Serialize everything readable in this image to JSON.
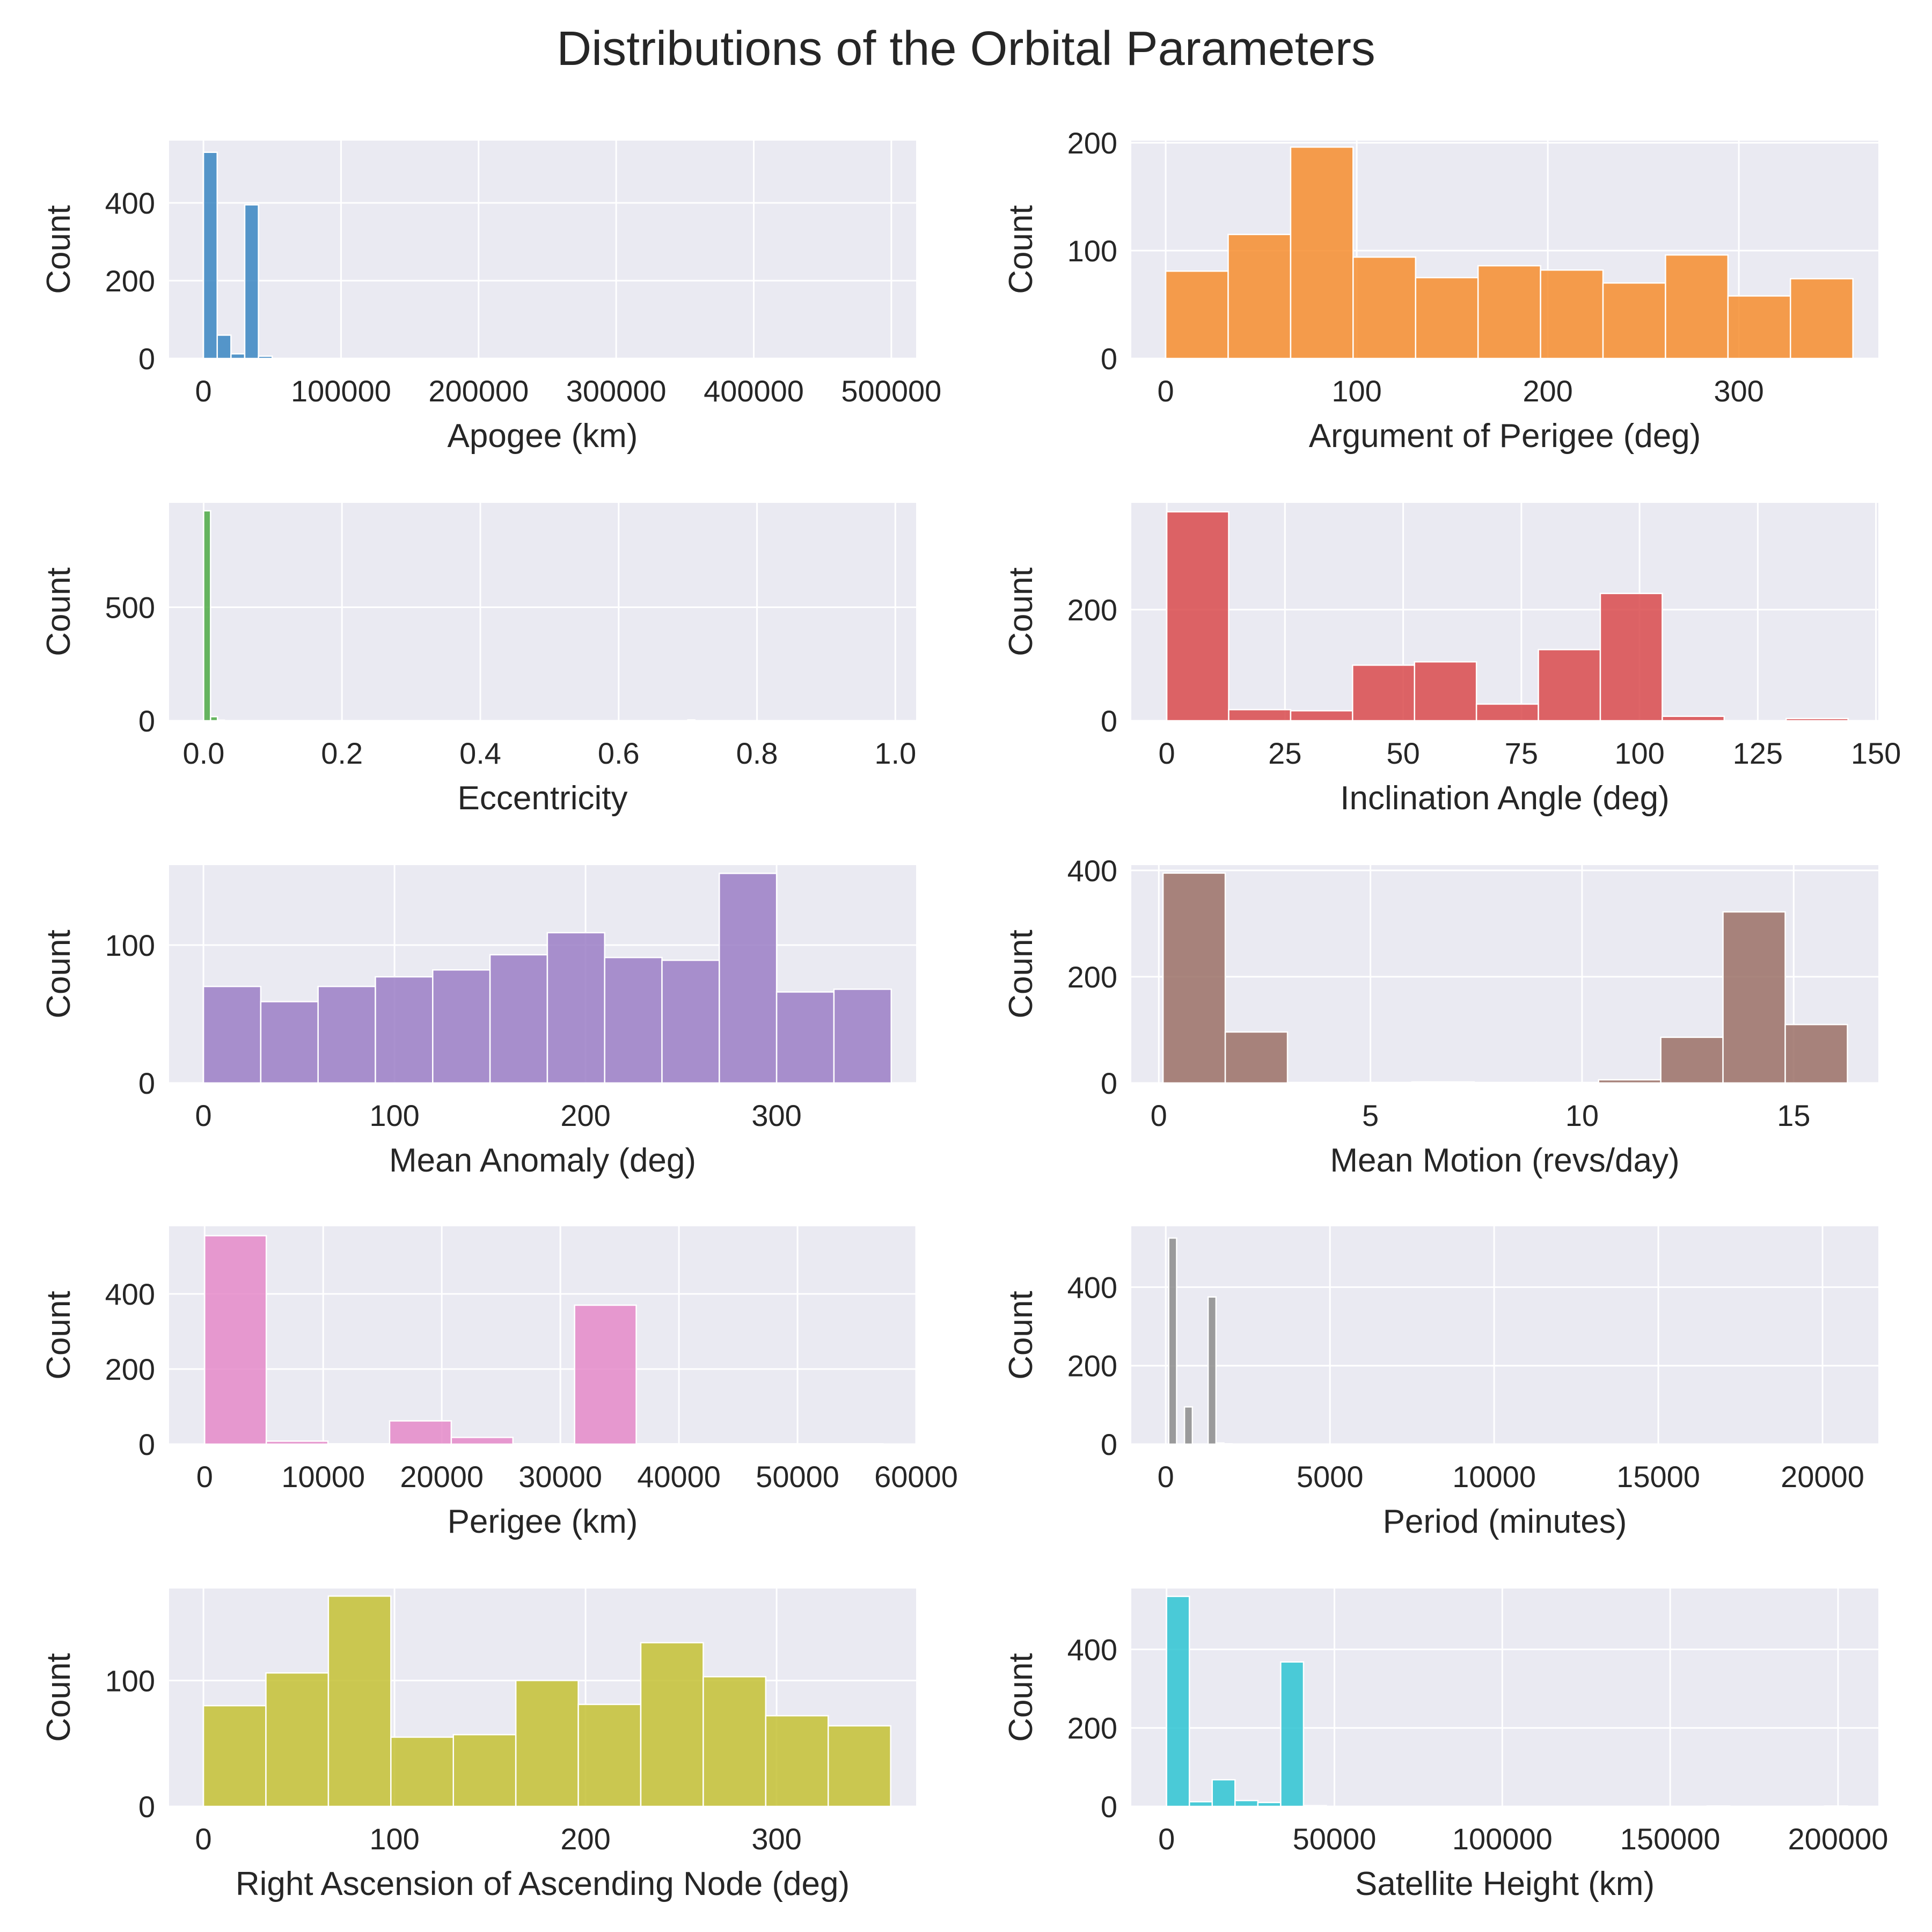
{
  "figure": {
    "title": "Distributions of the Orbital Parameters"
  },
  "chart_data": [
    {
      "type": "bar",
      "xlabel": "Apogee (km)",
      "ylabel": "Count",
      "color": "#3a86c2",
      "xlim": [
        -25000,
        518000
      ],
      "ylim": [
        0,
        560
      ],
      "xticks": [
        0,
        100000,
        200000,
        300000,
        400000,
        500000
      ],
      "xtick_labels": [
        "0",
        "100000",
        "200000",
        "300000",
        "400000",
        "500000"
      ],
      "yticks": [
        0,
        200,
        400
      ],
      "ytick_labels": [
        "0",
        "200",
        "400"
      ],
      "bins": [
        [
          0,
          10000,
          530
        ],
        [
          10000,
          20000,
          60
        ],
        [
          20000,
          30000,
          12
        ],
        [
          30000,
          40000,
          395
        ],
        [
          40000,
          50000,
          6
        ]
      ]
    },
    {
      "type": "bar",
      "xlabel": "Argument of Perigee (deg)",
      "ylabel": "Count",
      "color": "#f68d2e",
      "xlim": [
        -18,
        373
      ],
      "ylim": [
        0,
        202
      ],
      "xticks": [
        0,
        100,
        200,
        300
      ],
      "xtick_labels": [
        "0",
        "100",
        "200",
        "300"
      ],
      "yticks": [
        0,
        100,
        200
      ],
      "ytick_labels": [
        "0",
        "100",
        "200"
      ],
      "bins": [
        [
          0,
          32.7,
          81
        ],
        [
          32.7,
          65.4,
          115
        ],
        [
          65.4,
          98.1,
          196
        ],
        [
          98.1,
          130.8,
          94
        ],
        [
          130.8,
          163.5,
          75
        ],
        [
          163.5,
          196.2,
          86
        ],
        [
          196.2,
          228.9,
          82
        ],
        [
          228.9,
          261.6,
          70
        ],
        [
          261.6,
          294.3,
          96
        ],
        [
          294.3,
          327,
          58
        ],
        [
          327,
          359.7,
          74
        ]
      ]
    },
    {
      "type": "bar",
      "xlabel": "Eccentricity",
      "ylabel": "Count",
      "color": "#4eaa45",
      "xlim": [
        -0.05,
        1.03
      ],
      "ylim": [
        0,
        960
      ],
      "xticks": [
        0,
        0.2,
        0.4,
        0.6,
        0.8,
        1.0
      ],
      "xtick_labels": [
        "0.0",
        "0.2",
        "0.4",
        "0.6",
        "0.8",
        "1.0"
      ],
      "yticks": [
        0,
        500
      ],
      "ytick_labels": [
        "0",
        "500"
      ],
      "bins": [
        [
          0,
          0.01,
          925
        ],
        [
          0.01,
          0.02,
          18
        ],
        [
          0.02,
          0.03,
          3
        ],
        [
          0.7,
          0.71,
          4
        ]
      ]
    },
    {
      "type": "bar",
      "xlabel": "Inclination Angle (deg)",
      "ylabel": "Count",
      "color": "#d94a4c",
      "xlim": [
        -7.5,
        150.5
      ],
      "ylim": [
        0,
        392
      ],
      "xticks": [
        0,
        25,
        50,
        75,
        100,
        125,
        150
      ],
      "xtick_labels": [
        "0",
        "25",
        "50",
        "75",
        "100",
        "125",
        "150"
      ],
      "yticks": [
        0,
        200
      ],
      "ytick_labels": [
        "0",
        "200"
      ],
      "bins": [
        [
          0,
          13.1,
          376
        ],
        [
          13.1,
          26.2,
          20
        ],
        [
          26.2,
          39.3,
          18
        ],
        [
          39.3,
          52.4,
          100
        ],
        [
          52.4,
          65.5,
          106
        ],
        [
          65.5,
          78.6,
          30
        ],
        [
          78.6,
          91.7,
          128
        ],
        [
          91.7,
          104.8,
          229
        ],
        [
          104.8,
          117.9,
          8
        ],
        [
          117.9,
          131,
          0
        ],
        [
          131,
          144.1,
          4
        ]
      ]
    },
    {
      "type": "bar",
      "xlabel": "Mean Anomaly (deg)",
      "ylabel": "Count",
      "color": "#9b7ec6",
      "xlim": [
        -18,
        373
      ],
      "ylim": [
        0,
        158
      ],
      "xticks": [
        0,
        100,
        200,
        300
      ],
      "xtick_labels": [
        "0",
        "100",
        "200",
        "300"
      ],
      "yticks": [
        0,
        100
      ],
      "ytick_labels": [
        "0",
        "100"
      ],
      "bins": [
        [
          0,
          30,
          70
        ],
        [
          30,
          60,
          59
        ],
        [
          60,
          90,
          70
        ],
        [
          90,
          120,
          77
        ],
        [
          120,
          150,
          82
        ],
        [
          150,
          180,
          93
        ],
        [
          180,
          210,
          109
        ],
        [
          210,
          240,
          91
        ],
        [
          240,
          270,
          89
        ],
        [
          270,
          300,
          152
        ],
        [
          300,
          330,
          66
        ],
        [
          330,
          360,
          68
        ]
      ]
    },
    {
      "type": "bar",
      "xlabel": "Mean Motion (revs/day)",
      "ylabel": "Count",
      "color": "#9b7066",
      "xlim": [
        -0.65,
        17
      ],
      "ylim": [
        0,
        410
      ],
      "xticks": [
        0,
        5,
        10,
        15
      ],
      "xtick_labels": [
        "0",
        "5",
        "10",
        "15"
      ],
      "yticks": [
        0,
        200,
        400
      ],
      "ytick_labels": [
        "0",
        "200",
        "400"
      ],
      "bins": [
        [
          0.1,
          1.57,
          395
        ],
        [
          1.57,
          3.04,
          96
        ],
        [
          3.04,
          4.51,
          1
        ],
        [
          4.51,
          5.98,
          1
        ],
        [
          5.98,
          7.45,
          2
        ],
        [
          7.45,
          8.92,
          1
        ],
        [
          8.92,
          10.39,
          1
        ],
        [
          10.39,
          11.86,
          6
        ],
        [
          11.86,
          13.33,
          86
        ],
        [
          13.33,
          14.8,
          322
        ],
        [
          14.8,
          16.27,
          110
        ]
      ]
    },
    {
      "type": "bar",
      "xlabel": "Perigee (km)",
      "ylabel": "Count",
      "color": "#e58ac9",
      "xlim": [
        -3000,
        60000
      ],
      "ylim": [
        0,
        580
      ],
      "xticks": [
        0,
        10000,
        20000,
        30000,
        40000,
        50000,
        60000
      ],
      "xtick_labels": [
        "0",
        "10000",
        "20000",
        "30000",
        "40000",
        "50000",
        "60000"
      ],
      "yticks": [
        0,
        200,
        400
      ],
      "ytick_labels": [
        "0",
        "200",
        "400"
      ],
      "bins": [
        [
          0,
          5200,
          555
        ],
        [
          5200,
          10400,
          8
        ],
        [
          10400,
          15600,
          1
        ],
        [
          15600,
          20800,
          62
        ],
        [
          20800,
          26000,
          18
        ],
        [
          26000,
          31200,
          1
        ],
        [
          31200,
          36400,
          370
        ],
        [
          36400,
          41600,
          1
        ],
        [
          41600,
          46800,
          1
        ],
        [
          46800,
          52000,
          1
        ],
        [
          52000,
          57200,
          1
        ]
      ]
    },
    {
      "type": "bar",
      "xlabel": "Period (minutes)",
      "ylabel": "Count",
      "color": "#8c8c8c",
      "xlim": [
        -1050,
        21700
      ],
      "ylim": [
        0,
        555
      ],
      "xticks": [
        0,
        5000,
        10000,
        15000,
        20000
      ],
      "xtick_labels": [
        "0",
        "5000",
        "10000",
        "15000",
        "20000"
      ],
      "yticks": [
        0,
        200,
        400
      ],
      "ytick_labels": [
        "0",
        "200",
        "400"
      ],
      "bins": [
        [
          90,
          330,
          525
        ],
        [
          330,
          570,
          0
        ],
        [
          570,
          810,
          95
        ],
        [
          810,
          1050,
          0
        ],
        [
          1050,
          1290,
          0
        ],
        [
          1290,
          1530,
          375
        ],
        [
          1530,
          1770,
          3
        ],
        [
          1770,
          2010,
          1
        ]
      ]
    },
    {
      "type": "bar",
      "xlabel": "Right Ascension of Ascending Node (deg)",
      "ylabel": "Count",
      "color": "#c4c134",
      "xlim": [
        -18,
        373
      ],
      "ylim": [
        0,
        173
      ],
      "xticks": [
        0,
        100,
        200,
        300
      ],
      "xtick_labels": [
        "0",
        "100",
        "200",
        "300"
      ],
      "yticks": [
        0,
        100
      ],
      "ytick_labels": [
        "0",
        "100"
      ],
      "bins": [
        [
          0,
          32.7,
          80
        ],
        [
          32.7,
          65.4,
          106
        ],
        [
          65.4,
          98.1,
          167
        ],
        [
          98.1,
          130.8,
          55
        ],
        [
          130.8,
          163.5,
          57
        ],
        [
          163.5,
          196.2,
          100
        ],
        [
          196.2,
          228.9,
          81
        ],
        [
          228.9,
          261.6,
          130
        ],
        [
          261.6,
          294.3,
          103
        ],
        [
          294.3,
          327,
          72
        ],
        [
          327,
          359.7,
          64
        ]
      ]
    },
    {
      "type": "bar",
      "xlabel": "Satellite Height (km)",
      "ylabel": "Count",
      "color": "#2ec4d2",
      "xlim": [
        -10500,
        212000
      ],
      "ylim": [
        0,
        555
      ],
      "xticks": [
        0,
        50000,
        100000,
        150000,
        200000
      ],
      "xtick_labels": [
        "0",
        "50000",
        "100000",
        "150000",
        "200000"
      ],
      "yticks": [
        0,
        200,
        400
      ],
      "ytick_labels": [
        "0",
        "200",
        "400"
      ],
      "bins": [
        [
          0,
          6800,
          535
        ],
        [
          6800,
          13600,
          12
        ],
        [
          13600,
          20400,
          68
        ],
        [
          20400,
          27200,
          15
        ],
        [
          27200,
          34000,
          10
        ],
        [
          34000,
          40800,
          368
        ],
        [
          40800,
          47600,
          2
        ],
        [
          161000,
          167800,
          1
        ],
        [
          196000,
          202800,
          1
        ]
      ]
    }
  ]
}
